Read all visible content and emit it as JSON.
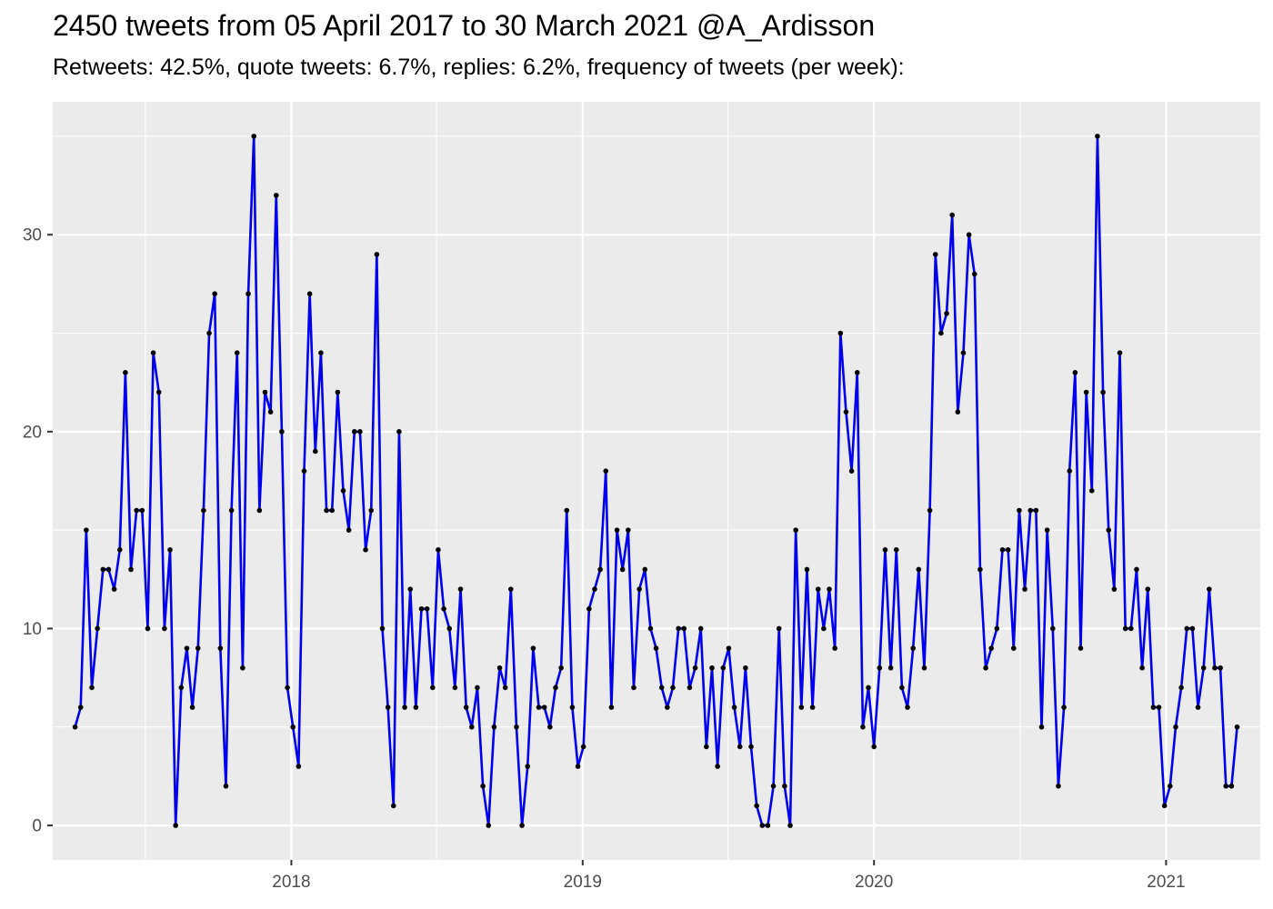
{
  "chart_data": {
    "type": "line",
    "title": "2450 tweets from 05 April 2017 to 30 March 2021 @A_Ardisson",
    "subtitle": "Retweets: 42.5%, quote tweets: 6.7%, replies: 6.2%, frequency of tweets (per week):",
    "xlabel": "",
    "ylabel": "",
    "x_ticks": [
      "2018",
      "2019",
      "2020",
      "2021"
    ],
    "y_ticks": [
      0,
      10,
      20,
      30
    ],
    "xlim": [
      "2017-03-08",
      "2021-04-29"
    ],
    "ylim": [
      -1.75,
      36.75
    ],
    "grid": true,
    "series": [
      {
        "color": "#0000ee",
        "point_color": "#000000",
        "x": [
          "2017-04-05",
          "2017-04-12",
          "2017-04-19",
          "2017-04-26",
          "2017-05-03",
          "2017-05-10",
          "2017-05-17",
          "2017-05-24",
          "2017-05-31",
          "2017-06-07",
          "2017-06-14",
          "2017-06-21",
          "2017-06-28",
          "2017-07-05",
          "2017-07-12",
          "2017-07-19",
          "2017-07-26",
          "2017-08-02",
          "2017-08-09",
          "2017-08-16",
          "2017-08-23",
          "2017-08-30",
          "2017-09-06",
          "2017-09-13",
          "2017-09-20",
          "2017-09-27",
          "2017-10-04",
          "2017-10-11",
          "2017-10-18",
          "2017-10-25",
          "2017-11-01",
          "2017-11-08",
          "2017-11-15",
          "2017-11-22",
          "2017-11-29",
          "2017-12-06",
          "2017-12-13",
          "2017-12-20",
          "2017-12-27",
          "2018-01-03",
          "2018-01-10",
          "2018-01-17",
          "2018-01-24",
          "2018-01-31",
          "2018-02-07",
          "2018-02-14",
          "2018-02-21",
          "2018-02-28",
          "2018-03-07",
          "2018-03-14",
          "2018-03-21",
          "2018-03-28",
          "2018-04-04",
          "2018-04-11",
          "2018-04-18",
          "2018-04-25",
          "2018-05-02",
          "2018-05-09",
          "2018-05-16",
          "2018-05-23",
          "2018-05-30",
          "2018-06-06",
          "2018-06-13",
          "2018-06-20",
          "2018-06-27",
          "2018-07-04",
          "2018-07-11",
          "2018-07-18",
          "2018-07-25",
          "2018-08-01",
          "2018-08-08",
          "2018-08-15",
          "2018-08-22",
          "2018-08-29",
          "2018-09-05",
          "2018-09-12",
          "2018-09-19",
          "2018-09-26",
          "2018-10-03",
          "2018-10-10",
          "2018-10-17",
          "2018-10-24",
          "2018-10-31",
          "2018-11-07",
          "2018-11-14",
          "2018-11-21",
          "2018-11-28",
          "2018-12-05",
          "2018-12-12",
          "2018-12-19",
          "2018-12-26",
          "2019-01-02",
          "2019-01-09",
          "2019-01-16",
          "2019-01-23",
          "2019-01-30",
          "2019-02-06",
          "2019-02-13",
          "2019-02-20",
          "2019-02-27",
          "2019-03-06",
          "2019-03-13",
          "2019-03-20",
          "2019-03-27",
          "2019-04-03",
          "2019-04-10",
          "2019-04-17",
          "2019-04-24",
          "2019-05-01",
          "2019-05-08",
          "2019-05-15",
          "2019-05-22",
          "2019-05-29",
          "2019-06-05",
          "2019-06-12",
          "2019-06-19",
          "2019-06-26",
          "2019-07-03",
          "2019-07-10",
          "2019-07-17",
          "2019-07-24",
          "2019-07-31",
          "2019-08-07",
          "2019-08-14",
          "2019-08-21",
          "2019-08-28",
          "2019-09-04",
          "2019-09-11",
          "2019-09-18",
          "2019-09-25",
          "2019-10-02",
          "2019-10-09",
          "2019-10-16",
          "2019-10-23",
          "2019-10-30",
          "2019-11-06",
          "2019-11-13",
          "2019-11-20",
          "2019-11-27",
          "2019-12-04",
          "2019-12-11",
          "2019-12-18",
          "2019-12-25",
          "2020-01-01",
          "2020-01-08",
          "2020-01-15",
          "2020-01-22",
          "2020-01-29",
          "2020-02-05",
          "2020-02-12",
          "2020-02-19",
          "2020-02-26",
          "2020-03-04",
          "2020-03-11",
          "2020-03-18",
          "2020-03-25",
          "2020-04-01",
          "2020-04-08",
          "2020-04-15",
          "2020-04-22",
          "2020-04-29",
          "2020-05-06",
          "2020-05-13",
          "2020-05-20",
          "2020-05-27",
          "2020-06-03",
          "2020-06-10",
          "2020-06-17",
          "2020-06-24",
          "2020-07-01",
          "2020-07-08",
          "2020-07-15",
          "2020-07-22",
          "2020-07-29",
          "2020-08-05",
          "2020-08-12",
          "2020-08-19",
          "2020-08-26",
          "2020-09-02",
          "2020-09-09",
          "2020-09-16",
          "2020-09-23",
          "2020-09-30",
          "2020-10-07",
          "2020-10-14",
          "2020-10-21",
          "2020-10-28",
          "2020-11-04",
          "2020-11-11",
          "2020-11-18",
          "2020-11-25",
          "2020-12-02",
          "2020-12-09",
          "2020-12-16",
          "2020-12-23",
          "2020-12-30",
          "2021-01-06",
          "2021-01-13",
          "2021-01-20",
          "2021-01-27",
          "2021-02-03",
          "2021-02-10",
          "2021-02-17",
          "2021-02-24",
          "2021-03-03",
          "2021-03-10",
          "2021-03-17",
          "2021-03-24",
          "2021-03-31"
        ],
        "y": [
          5,
          6,
          15,
          7,
          10,
          13,
          13,
          12,
          14,
          23,
          13,
          16,
          16,
          10,
          24,
          22,
          10,
          14,
          0,
          7,
          9,
          6,
          9,
          16,
          25,
          27,
          9,
          2,
          16,
          24,
          8,
          27,
          35,
          16,
          22,
          21,
          32,
          20,
          7,
          5,
          3,
          18,
          27,
          19,
          24,
          16,
          16,
          22,
          17,
          15,
          20,
          20,
          14,
          16,
          29,
          10,
          6,
          1,
          20,
          6,
          12,
          6,
          11,
          11,
          7,
          14,
          11,
          10,
          7,
          12,
          6,
          5,
          7,
          2,
          0,
          5,
          8,
          7,
          12,
          5,
          0,
          3,
          9,
          6,
          6,
          5,
          7,
          8,
          16,
          6,
          3,
          4,
          11,
          12,
          13,
          18,
          6,
          15,
          13,
          15,
          7,
          12,
          13,
          10,
          9,
          7,
          6,
          7,
          10,
          10,
          7,
          8,
          10,
          4,
          8,
          3,
          8,
          9,
          6,
          4,
          8,
          4,
          1,
          0,
          0,
          2,
          10,
          2,
          0,
          15,
          6,
          13,
          6,
          12,
          10,
          12,
          9,
          25,
          21,
          18,
          23,
          5,
          7,
          4,
          8,
          14,
          8,
          14,
          7,
          6,
          9,
          13,
          8,
          16,
          29,
          25,
          26,
          31,
          21,
          24,
          30,
          28,
          13,
          8,
          9,
          10,
          14,
          14,
          9,
          16,
          12,
          16,
          16,
          5,
          15,
          10,
          2,
          6,
          18,
          23,
          9,
          22,
          17,
          35,
          22,
          15,
          12,
          24,
          10,
          10,
          13,
          8,
          12,
          6,
          6,
          1,
          2,
          5,
          7,
          10,
          10,
          6,
          8,
          12,
          8,
          8,
          2,
          2,
          5
        ]
      }
    ]
  }
}
